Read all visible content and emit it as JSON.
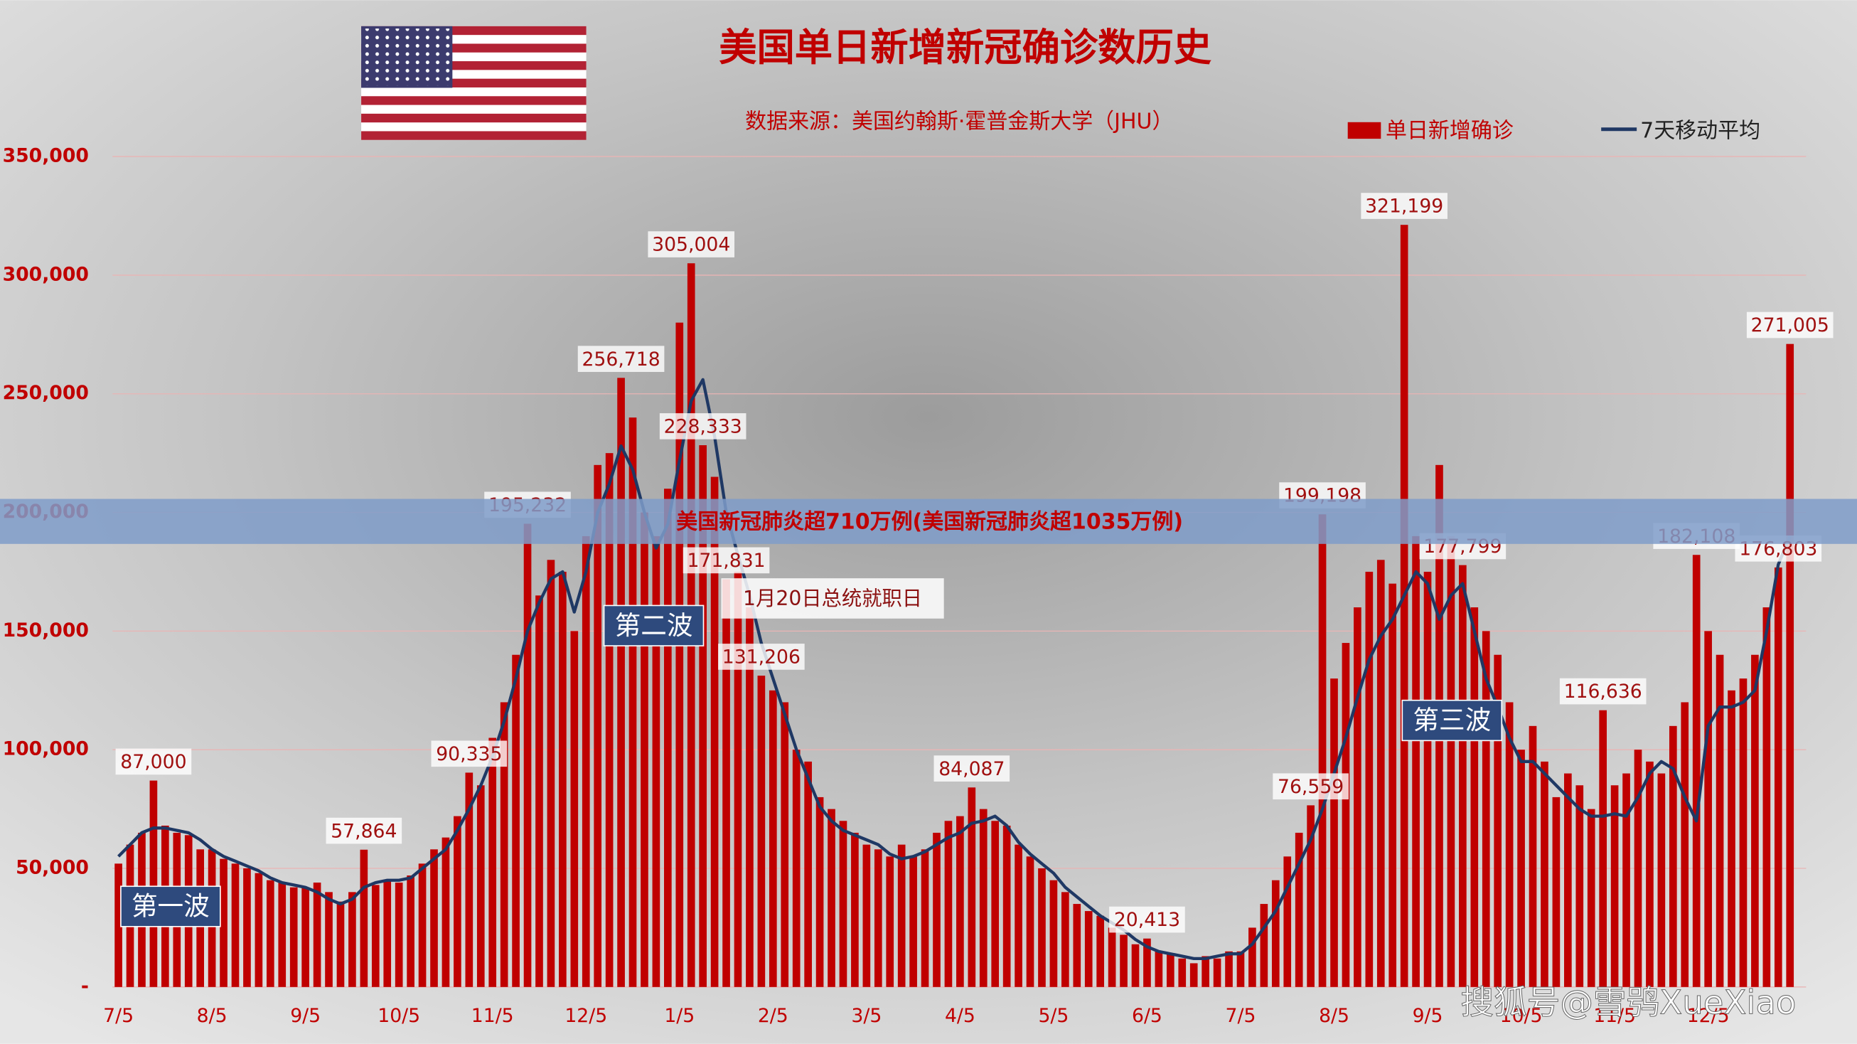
{
  "chart_data": {
    "type": "bar",
    "title": "美国单日新增新冠确诊数历史",
    "subtitle": "数据来源：美国约翰斯·霍普金斯大学（JHU）",
    "banner": "美国新冠肺炎超710万例(美国新冠肺炎超1035万例)",
    "watermark": "搜狐号@雪鸮XueXiao",
    "annotations": [
      "第一波",
      "第二波",
      "第三波",
      "1月20日总统就职日"
    ],
    "legend": "top-right",
    "grid": true,
    "ylim": [
      0,
      350000
    ],
    "yticks": [
      {
        "value": 0,
        "label": "-"
      },
      {
        "value": 50000,
        "label": "50,000"
      },
      {
        "value": 100000,
        "label": "100,000"
      },
      {
        "value": 150000,
        "label": "150,000"
      },
      {
        "value": 200000,
        "label": "200,000"
      },
      {
        "value": 250000,
        "label": "250,000"
      },
      {
        "value": 300000,
        "label": "300,000"
      },
      {
        "value": 350000,
        "label": "350,000"
      }
    ],
    "categories": [
      "7/5",
      null,
      null,
      null,
      null,
      null,
      null,
      null,
      "8/5",
      null,
      null,
      null,
      null,
      null,
      null,
      null,
      "9/5",
      null,
      null,
      null,
      null,
      null,
      null,
      null,
      "10/5",
      null,
      null,
      null,
      null,
      null,
      null,
      null,
      "11/5",
      null,
      null,
      null,
      null,
      null,
      null,
      null,
      "12/5",
      null,
      null,
      null,
      null,
      null,
      null,
      null,
      "1/5",
      null,
      null,
      null,
      null,
      null,
      null,
      null,
      "2/5",
      null,
      null,
      null,
      null,
      null,
      null,
      null,
      "3/5",
      null,
      null,
      null,
      null,
      null,
      null,
      null,
      "4/5",
      null,
      null,
      null,
      null,
      null,
      null,
      null,
      "5/5",
      null,
      null,
      null,
      null,
      null,
      null,
      null,
      "6/5",
      null,
      null,
      null,
      null,
      null,
      null,
      null,
      "7/5",
      null,
      null,
      null,
      null,
      null,
      null,
      null,
      "8/5",
      null,
      null,
      null,
      null,
      null,
      null,
      null,
      "9/5",
      null,
      null,
      null,
      null,
      null,
      null,
      null,
      "10/5",
      null,
      null,
      null,
      null,
      null,
      null,
      null,
      "11/5",
      null,
      null,
      null,
      null,
      null,
      null,
      null,
      "12/5",
      null,
      null,
      null,
      null,
      null,
      null,
      null
    ],
    "series": [
      {
        "name": "单日新增确诊",
        "color": "#c00000",
        "type": "bar",
        "values": [
          52000,
          60000,
          65000,
          87000,
          68000,
          65000,
          64000,
          58000,
          58000,
          54000,
          52000,
          50000,
          48000,
          45000,
          44000,
          42000,
          42000,
          44000,
          40000,
          36000,
          40000,
          57864,
          43000,
          45000,
          44000,
          47000,
          52000,
          58000,
          63000,
          72000,
          90335,
          85000,
          105000,
          120000,
          140000,
          195232,
          165000,
          180000,
          175000,
          150000,
          190000,
          220000,
          225000,
          256718,
          240000,
          200000,
          190000,
          210000,
          280000,
          305004,
          228333,
          215000,
          171831,
          175000,
          160000,
          131206,
          125000,
          120000,
          100000,
          95000,
          80000,
          75000,
          70000,
          65000,
          60000,
          58000,
          55000,
          60000,
          55000,
          58000,
          65000,
          70000,
          72000,
          84087,
          75000,
          70000,
          68000,
          60000,
          55000,
          50000,
          45000,
          40000,
          35000,
          32000,
          30000,
          25000,
          22000,
          18000,
          20413,
          15000,
          14000,
          12000,
          10000,
          13000,
          12000,
          15000,
          15000,
          25000,
          35000,
          45000,
          55000,
          65000,
          76559,
          199198,
          130000,
          145000,
          160000,
          175000,
          180000,
          170000,
          321199,
          190000,
          175000,
          220000,
          190000,
          177799,
          160000,
          150000,
          140000,
          120000,
          100000,
          110000,
          95000,
          80000,
          90000,
          85000,
          75000,
          116636,
          85000,
          90000,
          100000,
          95000,
          90000,
          110000,
          120000,
          182108,
          150000,
          140000,
          125000,
          130000,
          140000,
          160000,
          176803,
          271005
        ],
        "value_labels": [
          null,
          null,
          null,
          "87,000",
          null,
          null,
          null,
          null,
          null,
          null,
          null,
          null,
          null,
          null,
          null,
          null,
          null,
          null,
          null,
          null,
          null,
          "57,864",
          null,
          null,
          null,
          null,
          null,
          null,
          null,
          null,
          "90,335",
          null,
          null,
          null,
          null,
          "195,232",
          null,
          null,
          null,
          null,
          null,
          null,
          null,
          "256,718",
          null,
          null,
          null,
          null,
          null,
          "305,004",
          "228,333",
          null,
          "171,831",
          null,
          null,
          "131,206",
          null,
          null,
          null,
          null,
          null,
          null,
          null,
          null,
          null,
          null,
          null,
          null,
          null,
          null,
          null,
          null,
          null,
          "84,087",
          null,
          null,
          null,
          null,
          null,
          null,
          null,
          null,
          null,
          null,
          null,
          null,
          null,
          null,
          "20,413",
          null,
          null,
          null,
          null,
          null,
          null,
          null,
          null,
          null,
          null,
          null,
          null,
          null,
          "76,559",
          "199,198",
          null,
          null,
          null,
          null,
          null,
          null,
          "321,199",
          null,
          null,
          null,
          null,
          "177,799",
          null,
          null,
          null,
          null,
          null,
          null,
          null,
          null,
          null,
          null,
          null,
          "116,636",
          null,
          null,
          null,
          null,
          null,
          null,
          null,
          "182,108",
          null,
          null,
          null,
          null,
          null,
          null,
          "176,803",
          "271,005"
        ]
      },
      {
        "name": "7天移动平均",
        "color": "#1f3864",
        "type": "line",
        "values": [
          55000,
          60000,
          65000,
          67000,
          67000,
          66000,
          65000,
          62000,
          58000,
          55000,
          53000,
          51000,
          49000,
          46000,
          44000,
          43000,
          42000,
          40000,
          37000,
          35000,
          37000,
          42000,
          44000,
          45000,
          45000,
          46000,
          50000,
          54000,
          58000,
          66000,
          75000,
          85000,
          97000,
          112000,
          130000,
          150000,
          162000,
          172000,
          175000,
          158000,
          175000,
          200000,
          212000,
          228000,
          218000,
          200000,
          185000,
          195000,
          222000,
          247000,
          256000,
          232000,
          200000,
          182000,
          165000,
          145000,
          130000,
          115000,
          100000,
          88000,
          76000,
          70000,
          66000,
          64000,
          62000,
          60000,
          56000,
          54000,
          55000,
          57000,
          60000,
          63000,
          65000,
          69000,
          70000,
          72000,
          68000,
          61000,
          56000,
          52000,
          48000,
          42000,
          38000,
          34000,
          30000,
          27000,
          24000,
          20000,
          17000,
          15000,
          14000,
          13000,
          12000,
          12000,
          13000,
          14000,
          14000,
          18000,
          25000,
          32000,
          42000,
          52000,
          62000,
          75000,
          90000,
          105000,
          122000,
          138000,
          148000,
          155000,
          165000,
          175000,
          170000,
          155000,
          165000,
          170000,
          150000,
          130000,
          118000,
          105000,
          95000,
          95000,
          90000,
          85000,
          80000,
          75000,
          72000,
          72000,
          73000,
          72000,
          80000,
          90000,
          95000,
          92000,
          80000,
          70000,
          110000,
          118000,
          118000,
          120000,
          125000,
          150000,
          178000,
          190000
        ]
      }
    ]
  }
}
